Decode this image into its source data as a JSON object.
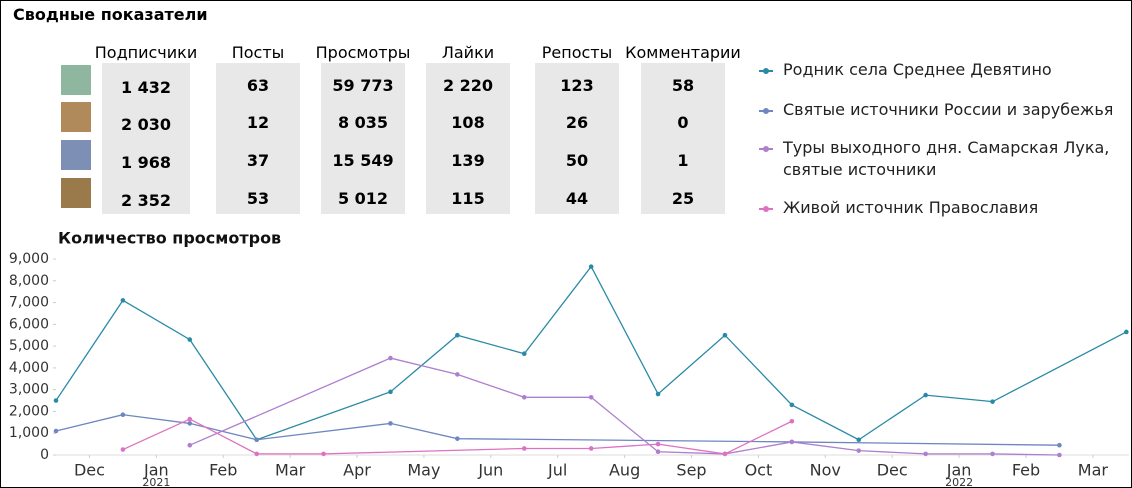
{
  "header": {
    "title": "Сводные показатели"
  },
  "table": {
    "columns": [
      "Подписчики",
      "Посты",
      "Просмотры",
      "Лайки",
      "Репосты",
      "Комментарии"
    ],
    "rows": [
      [
        "1 432",
        "63",
        "59 773",
        "2 220",
        "123",
        "58"
      ],
      [
        "2 030",
        "12",
        "8 035",
        "108",
        "26",
        "0"
      ],
      [
        "1 968",
        "37",
        "15 549",
        "139",
        "50",
        "1"
      ],
      [
        "2 352",
        "53",
        "5 012",
        "115",
        "44",
        "25"
      ]
    ]
  },
  "chart_data": {
    "type": "line",
    "title": "Количество просмотров",
    "xlim": [
      0.5,
      16.54
    ],
    "ylim": [
      0,
      9000
    ],
    "xticks": [
      {
        "value": 1,
        "label": "Dec"
      },
      {
        "value": 2,
        "label": "Jan",
        "year": "2021"
      },
      {
        "value": 3,
        "label": "Feb"
      },
      {
        "value": 4,
        "label": "Mar"
      },
      {
        "value": 5,
        "label": "Apr"
      },
      {
        "value": 6,
        "label": "May"
      },
      {
        "value": 7,
        "label": "Jun"
      },
      {
        "value": 8,
        "label": "Jul"
      },
      {
        "value": 9,
        "label": "Aug"
      },
      {
        "value": 10,
        "label": "Sep"
      },
      {
        "value": 11,
        "label": "Oct"
      },
      {
        "value": 12,
        "label": "Nov"
      },
      {
        "value": 13,
        "label": "Dec"
      },
      {
        "value": 14,
        "label": "Jan",
        "year": "2022"
      },
      {
        "value": 15,
        "label": "Feb"
      },
      {
        "value": 16,
        "label": "Mar"
      }
    ],
    "yticks": [
      0,
      {
        "value": 1000,
        "label": "1,000"
      },
      {
        "value": 2000,
        "label": "2,000"
      },
      {
        "value": 3000,
        "label": "3,000"
      },
      {
        "value": 4000,
        "label": "4,000"
      },
      {
        "value": 5000,
        "label": "5,000"
      },
      {
        "value": 6000,
        "label": "6,000"
      },
      {
        "value": 7000,
        "label": "7,000"
      },
      {
        "value": 8000,
        "label": "8,000"
      },
      {
        "value": 9000,
        "label": "9,000"
      }
    ],
    "series": [
      {
        "name": "Родник села Среднее Девятино",
        "color": "#2a8aa6",
        "x": [
          0.5,
          1.5,
          2.5,
          3.5,
          5.5,
          6.5,
          7.5,
          8.5,
          9.5,
          10.5,
          11.5,
          12.5,
          13.5,
          14.5,
          16.5
        ],
        "values": [
          2500,
          7100,
          5300,
          700,
          2900,
          5500,
          4650,
          8650,
          2800,
          5500,
          2300,
          700,
          2750,
          2450,
          5650
        ]
      },
      {
        "name": "Святые источники России и зарубежья",
        "color": "#6f86c0",
        "x": [
          0.5,
          1.5,
          2.5,
          3.5,
          5.5,
          6.5,
          11.5,
          15.5
        ],
        "values": [
          1100,
          1850,
          1450,
          700,
          1450,
          750,
          600,
          450
        ]
      },
      {
        "name": "Туры выходного дня. Самарская Лука, святые источники",
        "color": "#ad7fce",
        "x": [
          2.5,
          5.5,
          6.5,
          7.5,
          8.5,
          9.5,
          10.5,
          11.5,
          12.5,
          13.5,
          14.5,
          15.5
        ],
        "values": [
          450,
          4450,
          3700,
          2650,
          2650,
          150,
          50,
          600,
          200,
          50,
          50,
          0
        ]
      },
      {
        "name": "Живой источник Православия",
        "color": "#de72c2",
        "x": [
          1.5,
          2.5,
          3.5,
          4.5,
          7.5,
          8.5,
          9.5,
          10.5,
          11.5
        ],
        "values": [
          250,
          1650,
          50,
          50,
          300,
          300,
          500,
          50,
          1550
        ]
      }
    ]
  }
}
